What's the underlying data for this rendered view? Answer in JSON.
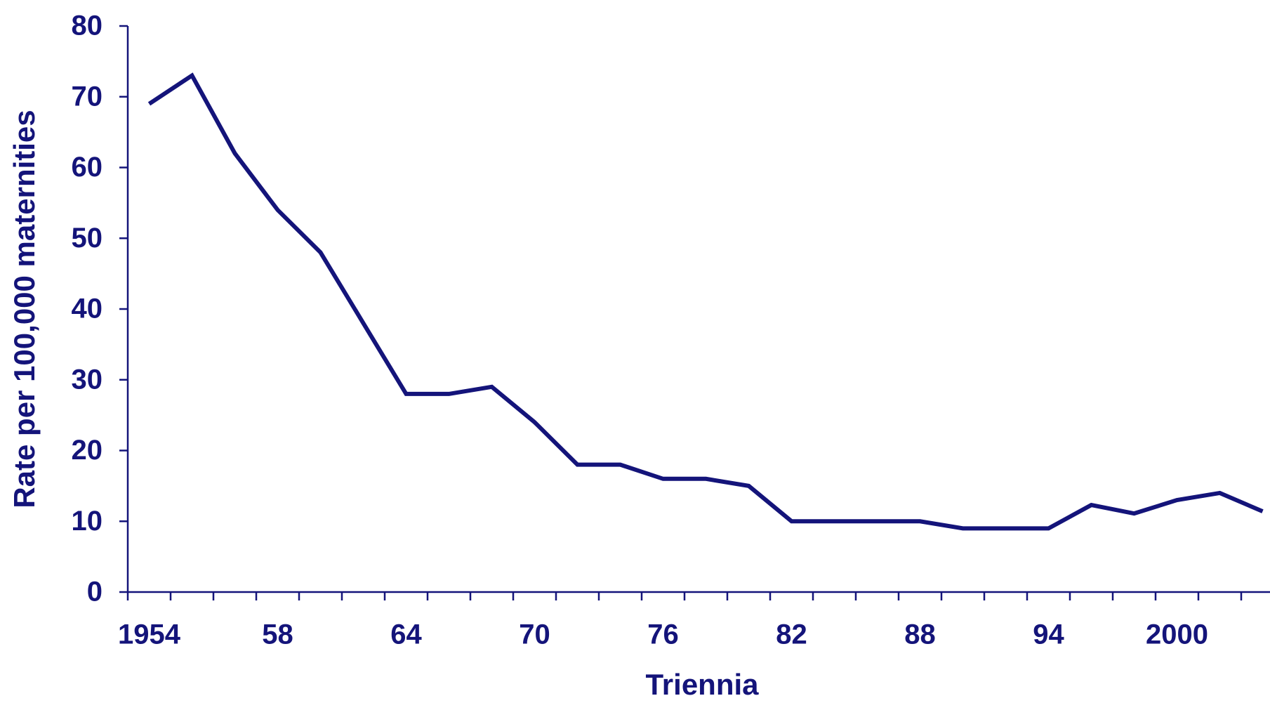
{
  "chart_data": {
    "type": "line",
    "x_label": "Triennia",
    "y_label": "Rate per 100,000 maternities",
    "categories": [
      "1954",
      null,
      null,
      "58",
      null,
      null,
      "64",
      null,
      null,
      "70",
      null,
      null,
      "76",
      null,
      null,
      "82",
      null,
      null,
      "88",
      null,
      null,
      "94",
      null,
      null,
      "2000",
      null,
      null
    ],
    "values": [
      69,
      73,
      62,
      54,
      48,
      38,
      28,
      28,
      29,
      24,
      18,
      18,
      16,
      16,
      15,
      10,
      10,
      10,
      10,
      9,
      9,
      9,
      12.3,
      11.1,
      13,
      14,
      11.4
    ],
    "color": "#14147a",
    "ylim": [
      0,
      80
    ],
    "yticks": [
      0,
      10,
      20,
      30,
      40,
      50,
      60,
      70,
      80
    ],
    "grid": false
  }
}
